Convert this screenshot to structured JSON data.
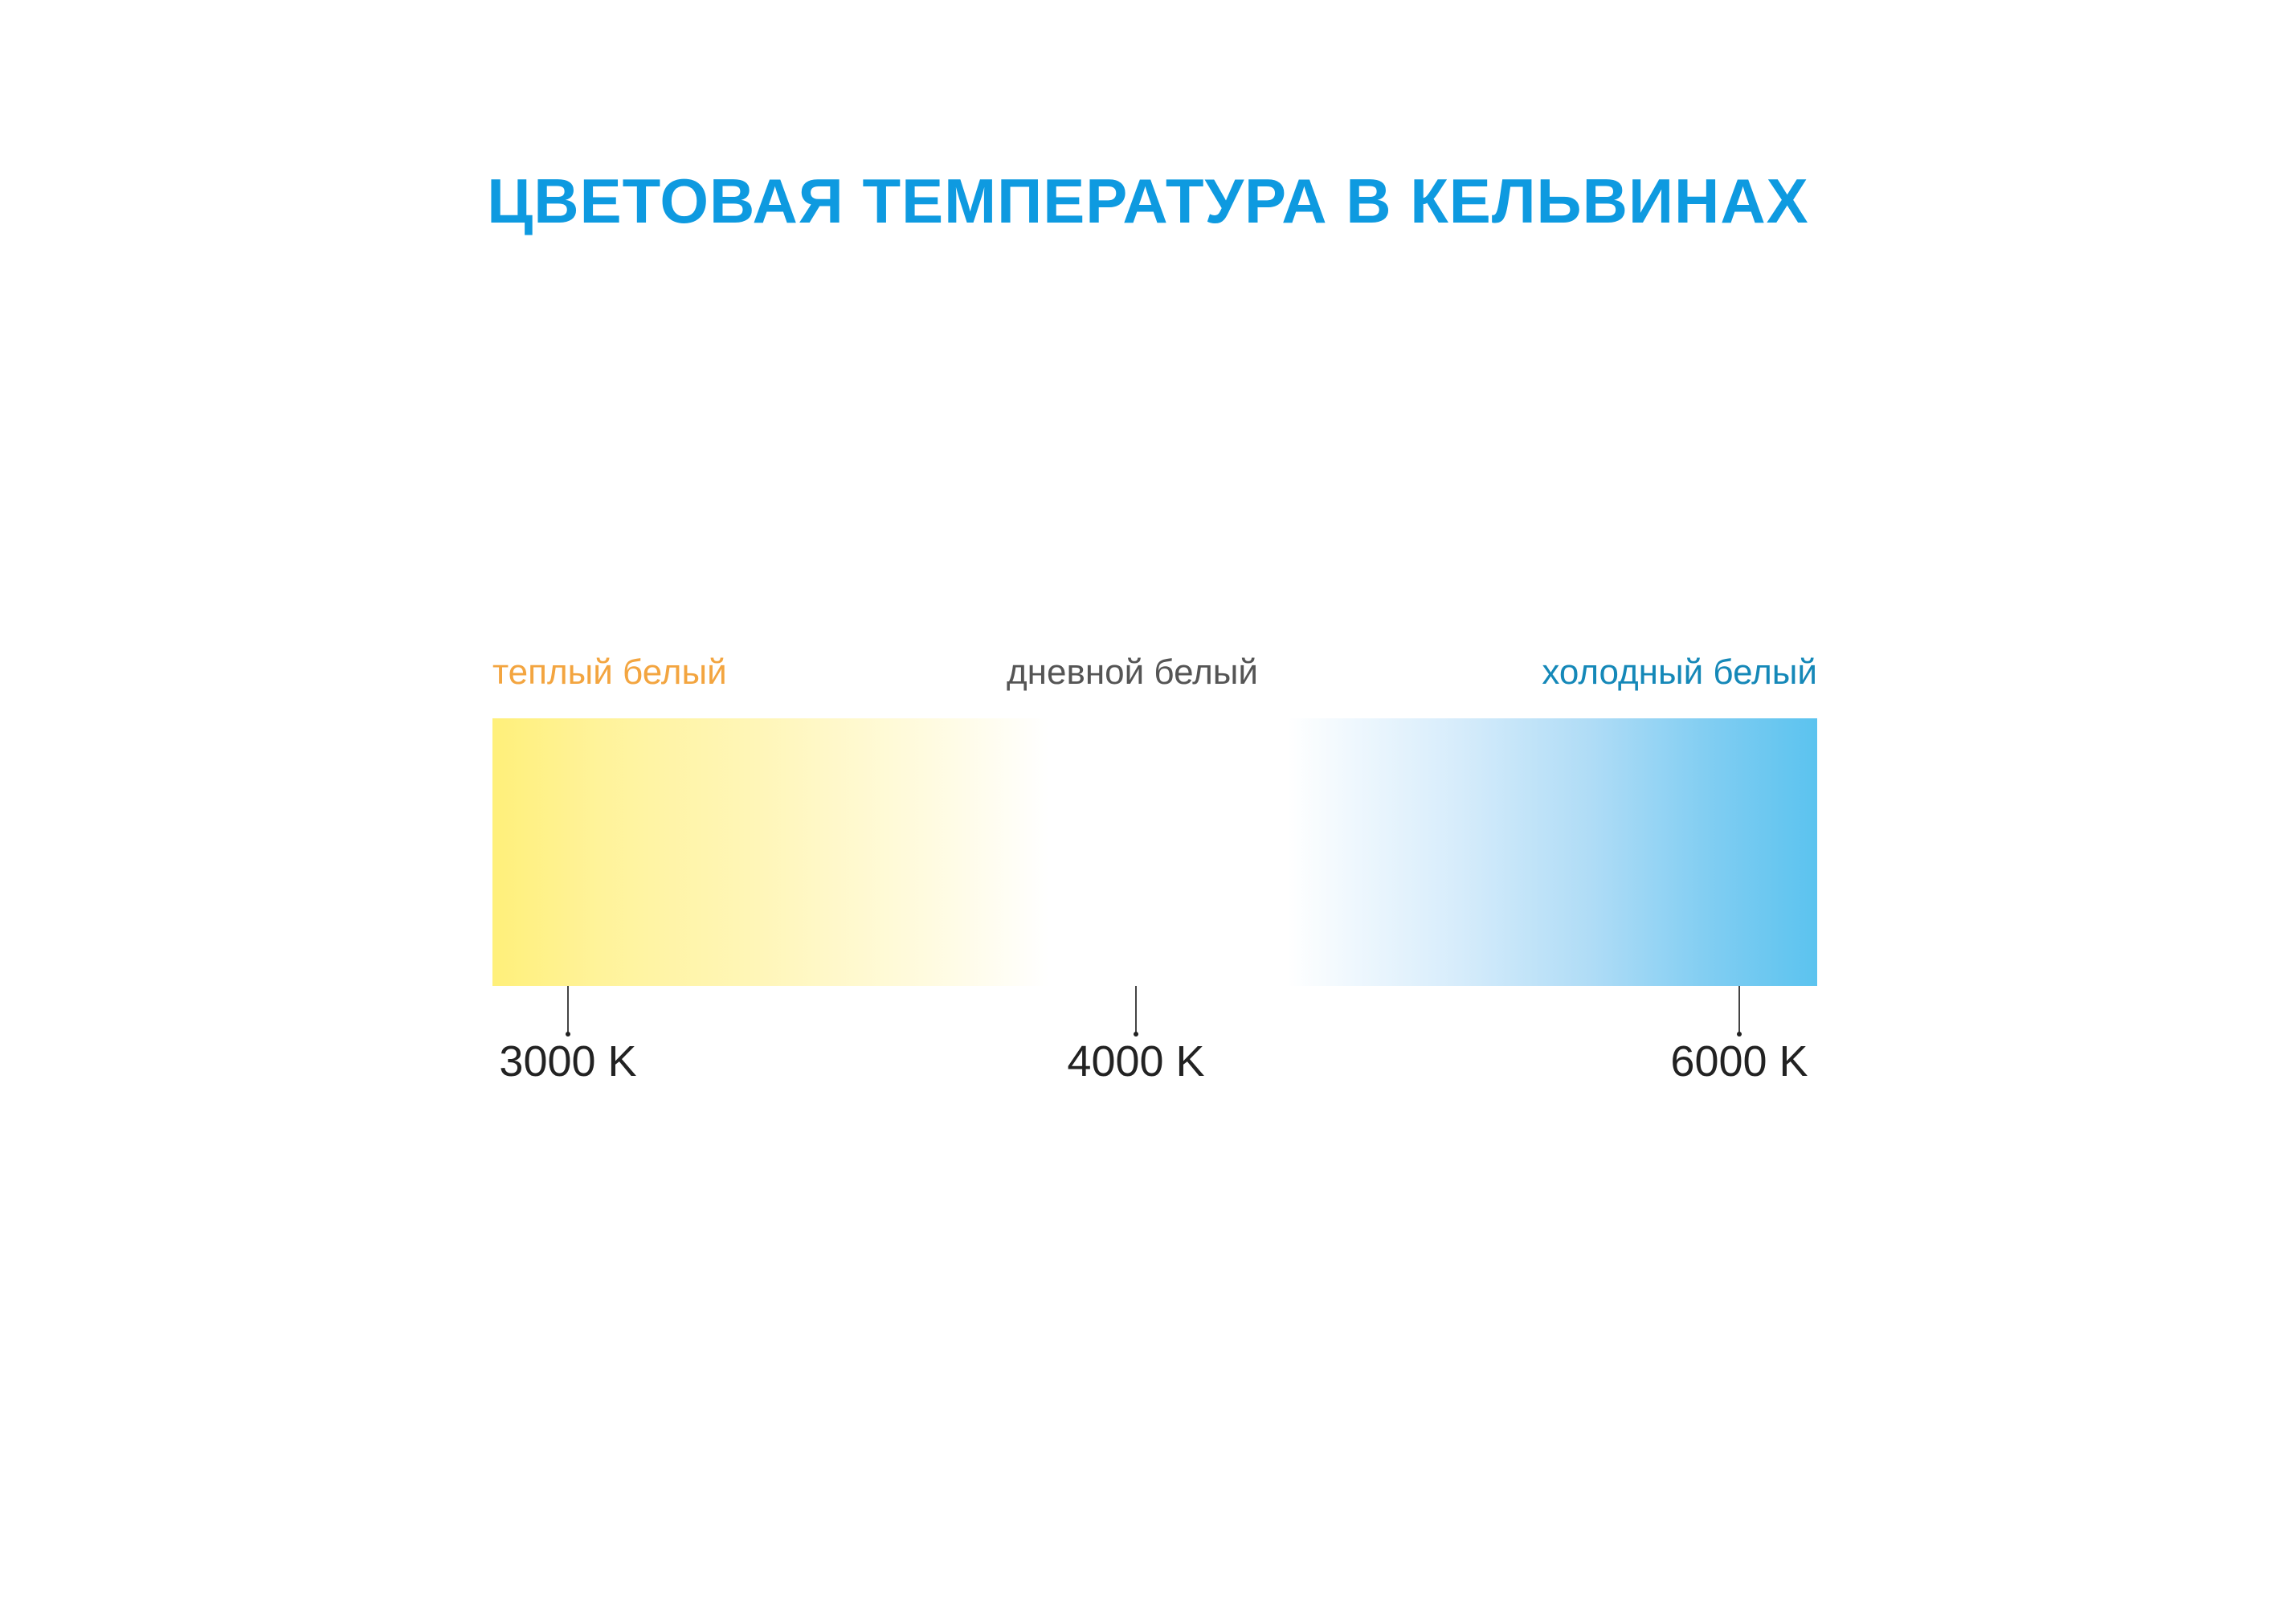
{
  "title": "ЦВЕТОВАЯ ТЕМПЕРАТУРА В КЕЛЬВИНАХ",
  "labels": {
    "warm": "теплый белый",
    "daylight": "дневной белый",
    "cool": "холодный белый"
  },
  "scale": [
    {
      "label": "3000 K"
    },
    {
      "label": "4000 K"
    },
    {
      "label": "6000 K"
    }
  ],
  "colors": {
    "title": "#0e9ae0",
    "warm_label": "#f3a540",
    "daylight_label": "#555555",
    "cool_label": "#1588b8",
    "warm_end": "#fff07a",
    "cool_end": "#5bc3ef"
  }
}
